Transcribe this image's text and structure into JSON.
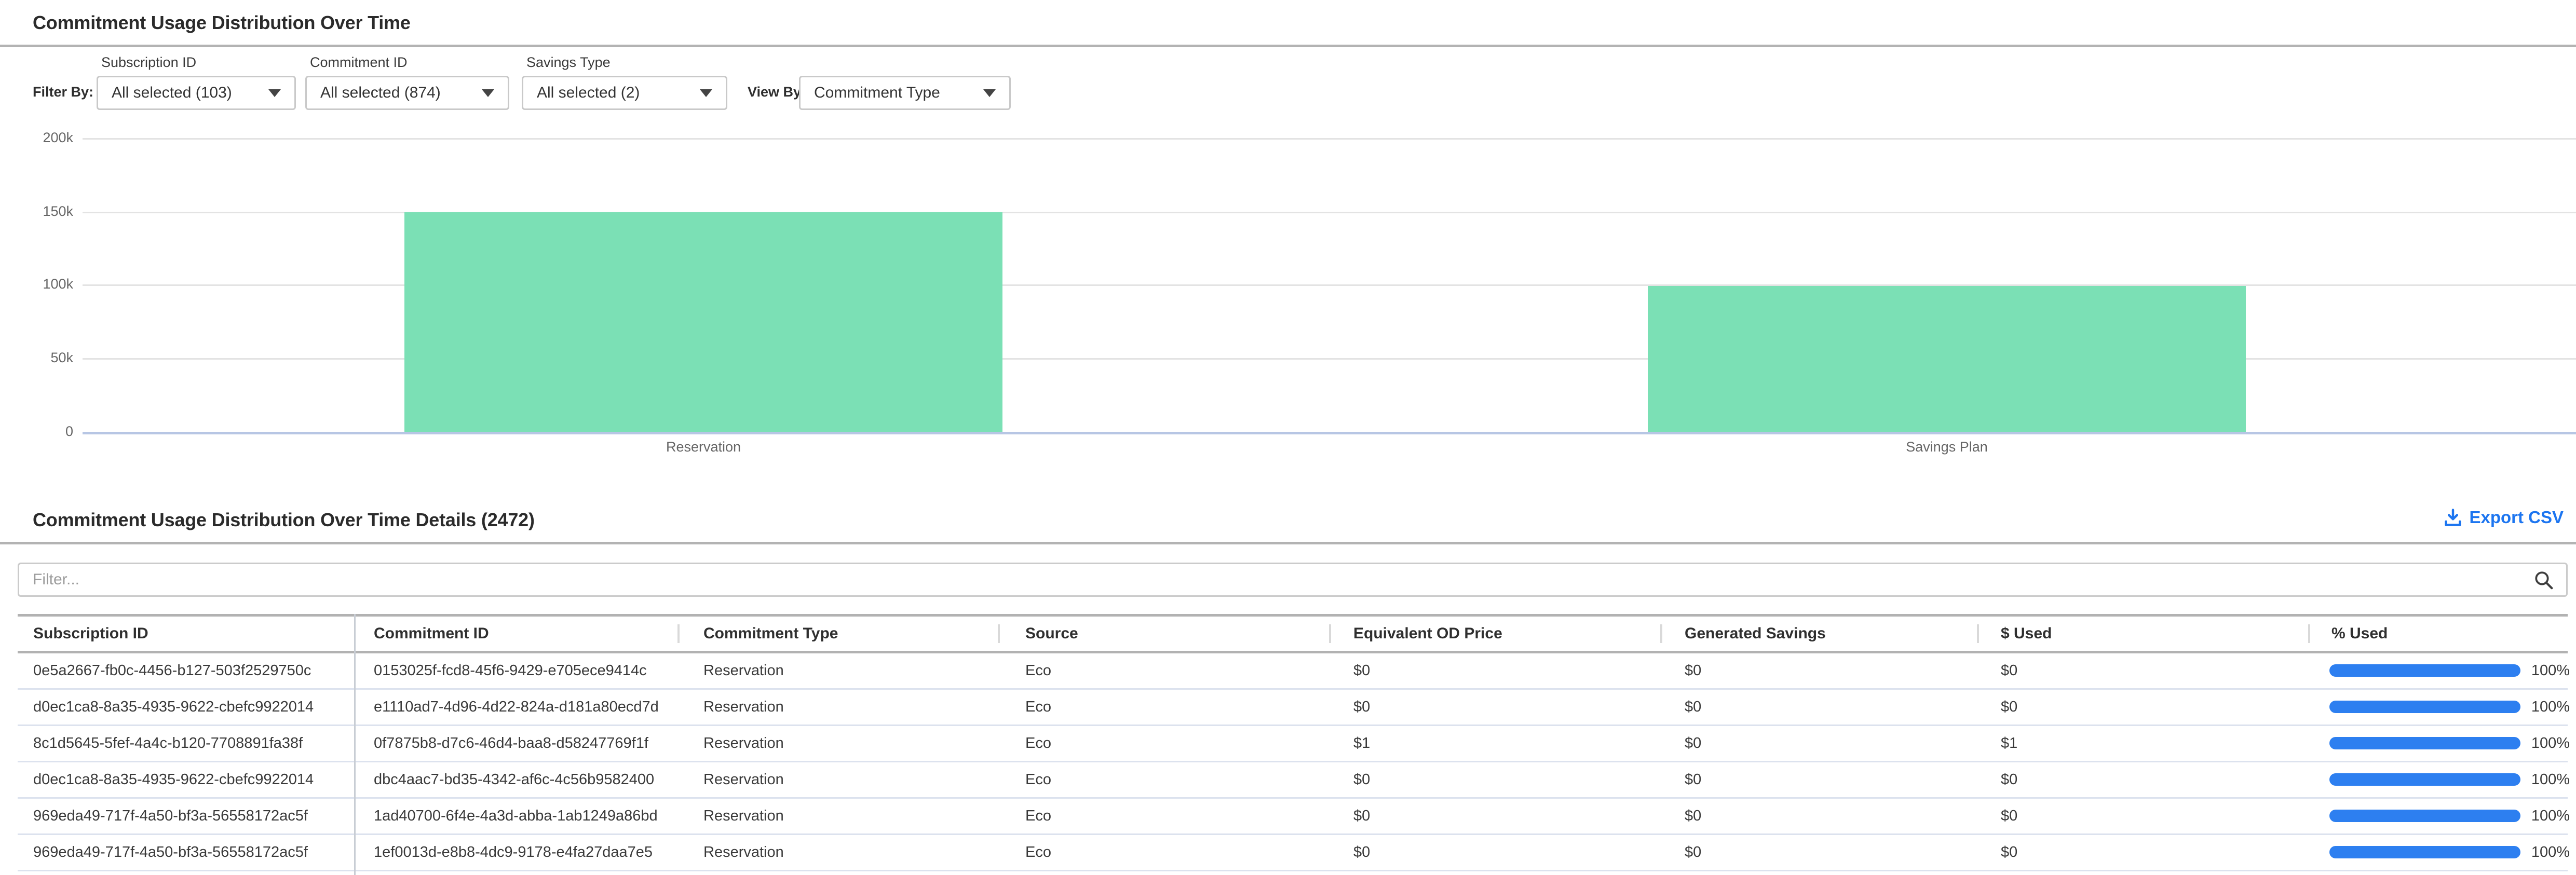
{
  "header": {
    "title": "Commitment Usage Distribution Over Time"
  },
  "filters": {
    "filter_by_label": "Filter By:",
    "view_by_label": "View By:",
    "dropdowns": [
      {
        "label": "Subscription ID",
        "value": "All selected (103)"
      },
      {
        "label": "Commitment ID",
        "value": "All selected (874)"
      },
      {
        "label": "Savings Type",
        "value": "All selected (2)"
      }
    ],
    "view_by": {
      "value": "Commitment Type"
    }
  },
  "chart_data": {
    "type": "bar",
    "categories": [
      "Reservation",
      "Savings Plan"
    ],
    "values": [
      149500,
      99300
    ],
    "title": "Commitment Usage Distribution Over Time",
    "xlabel": "",
    "ylabel": "",
    "ylim": [
      0,
      200000
    ],
    "yticks": [
      "200k",
      "150k",
      "100k",
      "50k",
      "0"
    ],
    "grid": true,
    "legend": false,
    "bar_color": "#7be0b5"
  },
  "details": {
    "title": "Commitment Usage Distribution Over Time Details (2472)",
    "export_label": "Export CSV",
    "filter_placeholder": "Filter...",
    "columns": [
      "Subscription ID",
      "Commitment ID",
      "Commitment Type",
      "Source",
      "Equivalent OD Price",
      "Generated Savings",
      "$ Used",
      "% Used"
    ],
    "rows": [
      {
        "subscription_id": "0e5a2667-fb0c-4456-b127-503f2529750c",
        "commitment_id": "0153025f-fcd8-45f6-9429-e705ece9414c",
        "commitment_type": "Reservation",
        "source": "Eco",
        "equivalent_od_price": "$0",
        "generated_savings": "$0",
        "used": "$0",
        "pct_used": "100%",
        "pct_value": 100
      },
      {
        "subscription_id": "d0ec1ca8-8a35-4935-9622-cbefc9922014",
        "commitment_id": "e1110ad7-4d96-4d22-824a-d181a80ecd7d",
        "commitment_type": "Reservation",
        "source": "Eco",
        "equivalent_od_price": "$0",
        "generated_savings": "$0",
        "used": "$0",
        "pct_used": "100%",
        "pct_value": 100
      },
      {
        "subscription_id": "8c1d5645-5fef-4a4c-b120-7708891fa38f",
        "commitment_id": "0f7875b8-d7c6-46d4-baa8-d58247769f1f",
        "commitment_type": "Reservation",
        "source": "Eco",
        "equivalent_od_price": "$1",
        "generated_savings": "$0",
        "used": "$1",
        "pct_used": "100%",
        "pct_value": 100
      },
      {
        "subscription_id": "d0ec1ca8-8a35-4935-9622-cbefc9922014",
        "commitment_id": "dbc4aac7-bd35-4342-af6c-4c56b9582400",
        "commitment_type": "Reservation",
        "source": "Eco",
        "equivalent_od_price": "$0",
        "generated_savings": "$0",
        "used": "$0",
        "pct_used": "100%",
        "pct_value": 100
      },
      {
        "subscription_id": "969eda49-717f-4a50-bf3a-56558172ac5f",
        "commitment_id": "1ad40700-6f4e-4a3d-abba-1ab1249a86bd",
        "commitment_type": "Reservation",
        "source": "Eco",
        "equivalent_od_price": "$0",
        "generated_savings": "$0",
        "used": "$0",
        "pct_used": "100%",
        "pct_value": 100
      },
      {
        "subscription_id": "969eda49-717f-4a50-bf3a-56558172ac5f",
        "commitment_id": "1ef0013d-e8b8-4dc9-9178-e4fa27daa7e5",
        "commitment_type": "Reservation",
        "source": "Eco",
        "equivalent_od_price": "$0",
        "generated_savings": "$0",
        "used": "$0",
        "pct_used": "100%",
        "pct_value": 100
      }
    ]
  },
  "colors": {
    "accent_blue": "#1c75f0",
    "progress_blue": "#2d7ff0",
    "bar_green": "#7be0b5",
    "divider_gray": "#b3b3b3",
    "zero_line": "#b7c6e4"
  }
}
